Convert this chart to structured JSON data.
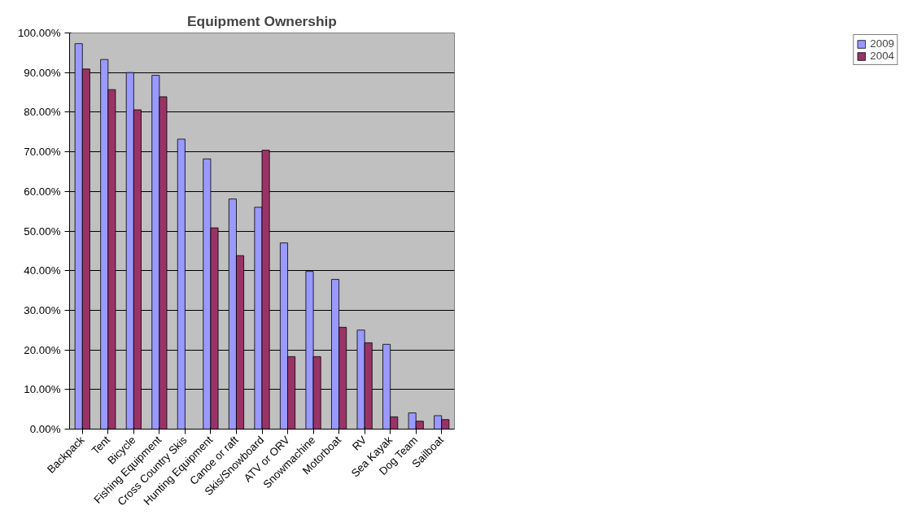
{
  "chart_data": {
    "type": "bar",
    "title": "Equipment Ownership",
    "categories": [
      "Backpack",
      "Tent",
      "Bicycle",
      "Fishing Equipment",
      "Cross Country Skis",
      "Hunting Equipment",
      "Canoe or raft",
      "Skis/Snowboard",
      "ATV or ORV",
      "Snowmachine",
      "Motorboat",
      "RV",
      "Sea Kayak",
      "Dog Team",
      "Sailboat"
    ],
    "series": [
      {
        "name": "2009",
        "color": "#9999ff",
        "values": [
          97.3,
          93.3,
          90,
          89.3,
          73.2,
          68.2,
          58.1,
          56,
          47,
          39.8,
          37.8,
          25,
          21.4,
          4.1,
          3.4
        ]
      },
      {
        "name": "2004",
        "color": "#993366",
        "values": [
          90.9,
          85.7,
          80.6,
          83.9,
          null,
          50.8,
          43.8,
          70.4,
          18.3,
          18.3,
          25.7,
          21.8,
          3.1,
          2,
          2.4
        ]
      }
    ],
    "ylim": [
      0,
      100
    ],
    "yticks": [
      {
        "value": 0,
        "label": "0.00%"
      },
      {
        "value": 10,
        "label": "10.00%"
      },
      {
        "value": 20,
        "label": "20.00%"
      },
      {
        "value": 30,
        "label": "30.00%"
      },
      {
        "value": 40,
        "label": "40.00%"
      },
      {
        "value": 50,
        "label": "50.00%"
      },
      {
        "value": 60,
        "label": "60.00%"
      },
      {
        "value": 70,
        "label": "70.00%"
      },
      {
        "value": 80,
        "label": "80.00%"
      },
      {
        "value": 90,
        "label": "90.00%"
      },
      {
        "value": 100,
        "label": "100.00%"
      }
    ],
    "grid": "y",
    "legend": "right"
  }
}
